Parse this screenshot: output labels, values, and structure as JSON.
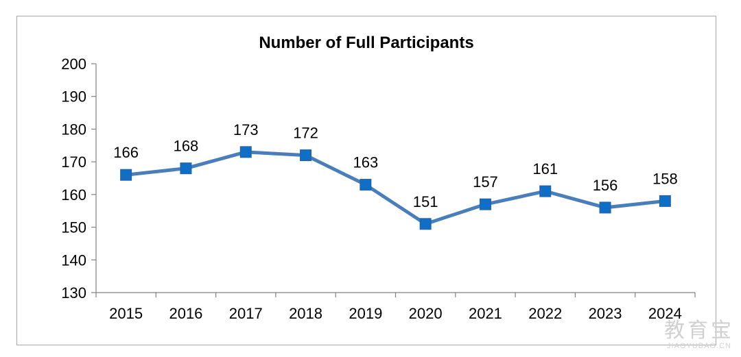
{
  "chart_data": {
    "type": "line",
    "title": "Number of Full Participants",
    "xlabel": "",
    "ylabel": "",
    "categories": [
      "2015",
      "2016",
      "2017",
      "2018",
      "2019",
      "2020",
      "2021",
      "2022",
      "2023",
      "2024"
    ],
    "series": [
      {
        "values": [
          166,
          168,
          173,
          172,
          163,
          151,
          157,
          161,
          156,
          158
        ],
        "color": "#4a7ebb",
        "marker": "square",
        "marker_color": "#0f6fc6"
      }
    ],
    "ylim": [
      130,
      200
    ],
    "yticks": [
      130,
      140,
      150,
      160,
      170,
      180,
      190,
      200
    ],
    "grid": false,
    "legend": "none",
    "data_labels": true
  },
  "watermark": {
    "main": "教育宝",
    "sub": "JIAOYUBAO.CN"
  }
}
